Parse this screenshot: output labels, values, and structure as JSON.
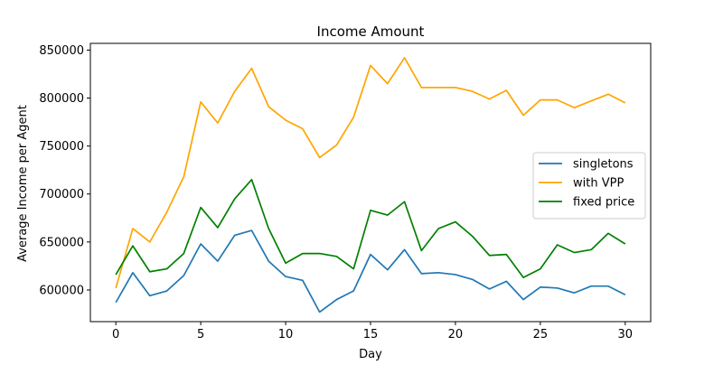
{
  "chart_data": {
    "type": "line",
    "title": "Income Amount",
    "xlabel": "Day",
    "ylabel": "Average Income per Agent",
    "xlim": [
      -1.5,
      31.5
    ],
    "ylim": [
      567000,
      857000
    ],
    "x_ticks": [
      0,
      5,
      10,
      15,
      20,
      25,
      30
    ],
    "x_tick_labels": [
      "0",
      "5",
      "10",
      "15",
      "20",
      "25",
      "30"
    ],
    "y_ticks": [
      600000,
      650000,
      700000,
      750000,
      800000,
      850000
    ],
    "y_tick_labels": [
      "600000",
      "650000",
      "700000",
      "750000",
      "800000",
      "850000"
    ],
    "grid": false,
    "legend_position": "center-right",
    "x": [
      0,
      1,
      2,
      3,
      4,
      5,
      6,
      7,
      8,
      9,
      10,
      11,
      12,
      13,
      14,
      15,
      16,
      17,
      18,
      19,
      20,
      21,
      22,
      23,
      24,
      25,
      26,
      27,
      28,
      29,
      30
    ],
    "series": [
      {
        "name": "singletons",
        "color": "#1f77b4",
        "values": [
          587000,
          618000,
          594000,
          599000,
          615000,
          648000,
          630000,
          657000,
          662000,
          630000,
          614000,
          610000,
          577000,
          590000,
          599000,
          637000,
          621000,
          642000,
          617000,
          618000,
          616000,
          611000,
          601000,
          609000,
          590000,
          603000,
          602000,
          597000,
          604000,
          604000,
          595000
        ]
      },
      {
        "name": "with VPP",
        "color": "#ffa500",
        "values": [
          602000,
          664000,
          650000,
          681000,
          718000,
          796000,
          774000,
          807000,
          831000,
          791000,
          777000,
          768000,
          738000,
          751000,
          780000,
          834000,
          815000,
          842000,
          811000,
          811000,
          811000,
          807000,
          799000,
          808000,
          782000,
          798000,
          798000,
          790000,
          797000,
          804000,
          795000
        ]
      },
      {
        "name": "fixed price",
        "color": "#008000",
        "values": [
          616000,
          646000,
          619000,
          622000,
          638000,
          686000,
          665000,
          695000,
          715000,
          664000,
          628000,
          638000,
          638000,
          635000,
          622000,
          683000,
          678000,
          692000,
          641000,
          664000,
          671000,
          656000,
          636000,
          637000,
          613000,
          622000,
          647000,
          639000,
          642000,
          659000,
          648000
        ]
      }
    ]
  }
}
